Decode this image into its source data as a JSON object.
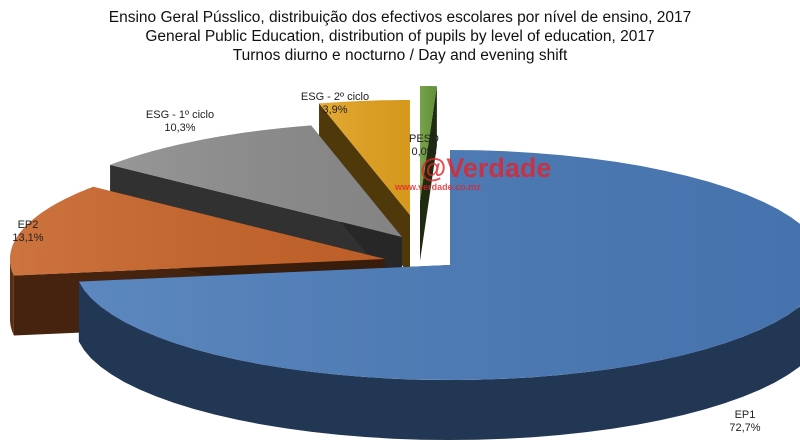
{
  "header": {
    "title_pt": "Ensino Geral Pússlico, distribuição dos efectivos escolares por nível de ensino, 2017",
    "title_en": "General Public Education, distribution of pupils by level of education, 2017",
    "subtitle": "Turnos diurno e nocturno / Day and evening shift"
  },
  "watermark": {
    "brand": "@Verdade",
    "url": "www.verdade.co.mz"
  },
  "colors": {
    "EP1": "#4a7ab8",
    "EP2": "#c8642a",
    "ESG1": "#8c8c8c",
    "ESG2": "#e3a21f",
    "PESD": "#6a9a3a"
  },
  "chart_data": {
    "type": "pie",
    "style": "3d-exploded",
    "title": "Ensino Geral Pússlico, distribuição dos efectivos escolares por nível de ensino, 2017 / General Public Education, distribution of pupils by level of education, 2017",
    "subtitle": "Turnos diurno e nocturno / Day and evening shift",
    "slices": [
      {
        "key": "EP1",
        "label": "EP1",
        "value": 72.7,
        "value_label": "72,7%"
      },
      {
        "key": "EP2",
        "label": "EP2",
        "value": 13.1,
        "value_label": "13,1%"
      },
      {
        "key": "ESG1",
        "label": "ESG - 1º ciclo",
        "value": 10.3,
        "value_label": "10,3%"
      },
      {
        "key": "ESG2",
        "label": "ESG - 2º ciclo",
        "value": 3.9,
        "value_label": "3,9%"
      },
      {
        "key": "PESD",
        "label": "PESD",
        "value": 0.0,
        "value_label": "0,0%"
      }
    ]
  }
}
